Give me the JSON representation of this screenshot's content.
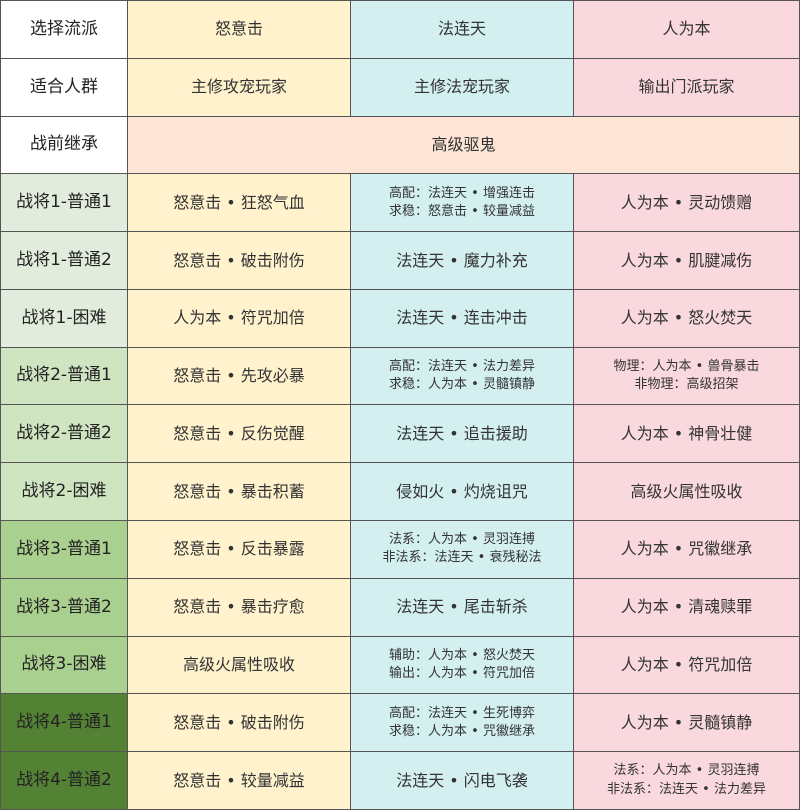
{
  "header": [
    "选择流派",
    "怒意击",
    "法连天",
    "人为本"
  ],
  "audience": {
    "label": "适合人群",
    "values": [
      "主修攻宠玩家",
      "主修法宠玩家",
      "输出门派玩家"
    ]
  },
  "prebattle": {
    "label": "战前继承",
    "value": "高级驱鬼"
  },
  "colors": {
    "col2": "#fff2cc",
    "col3": "#d3eff0",
    "col4": "#f9d9de",
    "span": "#fce4d6",
    "group1": "#e2ecdc",
    "group2": "#cfe4c0",
    "group3": "#a9d08e",
    "group4": "#548235"
  },
  "rows": [
    {
      "label": "战将1-普通1",
      "c2": [
        "怒意击 • 狂怒气血"
      ],
      "c3": [
        "高配：法连天 • 增强连击",
        "求稳：怒意击 • 较量减益"
      ],
      "c4": [
        "人为本 • 灵动馈赠"
      ]
    },
    {
      "label": "战将1-普通2",
      "c2": [
        "怒意击 • 破击附伤"
      ],
      "c3": [
        "法连天 • 魔力补充"
      ],
      "c4": [
        "人为本 • 肌腱减伤"
      ]
    },
    {
      "label": "战将1-困难",
      "c2": [
        "人为本 • 符咒加倍"
      ],
      "c3": [
        "法连天 • 连击冲击"
      ],
      "c4": [
        "人为本 • 怒火焚天"
      ]
    },
    {
      "label": "战将2-普通1",
      "c2": [
        "怒意击 • 先攻必暴"
      ],
      "c3": [
        "高配：法连天 • 法力差异",
        "求稳：人为本 • 灵髓镇静"
      ],
      "c4": [
        "物理：人为本 • 兽骨暴击",
        "非物理：高级招架"
      ]
    },
    {
      "label": "战将2-普通2",
      "c2": [
        "怒意击 • 反伤觉醒"
      ],
      "c3": [
        "法连天 • 追击援助"
      ],
      "c4": [
        "人为本 • 神骨壮健"
      ]
    },
    {
      "label": "战将2-困难",
      "c2": [
        "怒意击 • 暴击积蓄"
      ],
      "c3": [
        "侵如火 • 灼烧诅咒"
      ],
      "c4": [
        "高级火属性吸收"
      ]
    },
    {
      "label": "战将3-普通1",
      "c2": [
        "怒意击 • 反击暴露"
      ],
      "c3": [
        "法系：人为本 • 灵羽连搏",
        "非法系：法连天 • 衰残秘法"
      ],
      "c4": [
        "人为本 • 咒徽继承"
      ]
    },
    {
      "label": "战将3-普通2",
      "c2": [
        "怒意击 • 暴击疗愈"
      ],
      "c3": [
        "法连天 • 尾击斩杀"
      ],
      "c4": [
        "人为本 • 清魂赎罪"
      ]
    },
    {
      "label": "战将3-困难",
      "c2": [
        "高级火属性吸收"
      ],
      "c3": [
        "辅助：人为本 • 怒火焚天",
        "输出：人为本 • 符咒加倍"
      ],
      "c4": [
        "人为本 • 符咒加倍"
      ]
    },
    {
      "label": "战将4-普通1",
      "c2": [
        "怒意击 • 破击附伤"
      ],
      "c3": [
        "高配：法连天 • 生死博弈",
        "求稳：人为本 • 咒徽继承"
      ],
      "c4": [
        "人为本 • 灵髓镇静"
      ]
    },
    {
      "label": "战将4-普通2",
      "c2": [
        "怒意击 • 较量减益"
      ],
      "c3": [
        "法连天 • 闪电飞袭"
      ],
      "c4": [
        "法系：人为本 • 灵羽连搏",
        "非法系：法连天 • 法力差异"
      ]
    }
  ]
}
